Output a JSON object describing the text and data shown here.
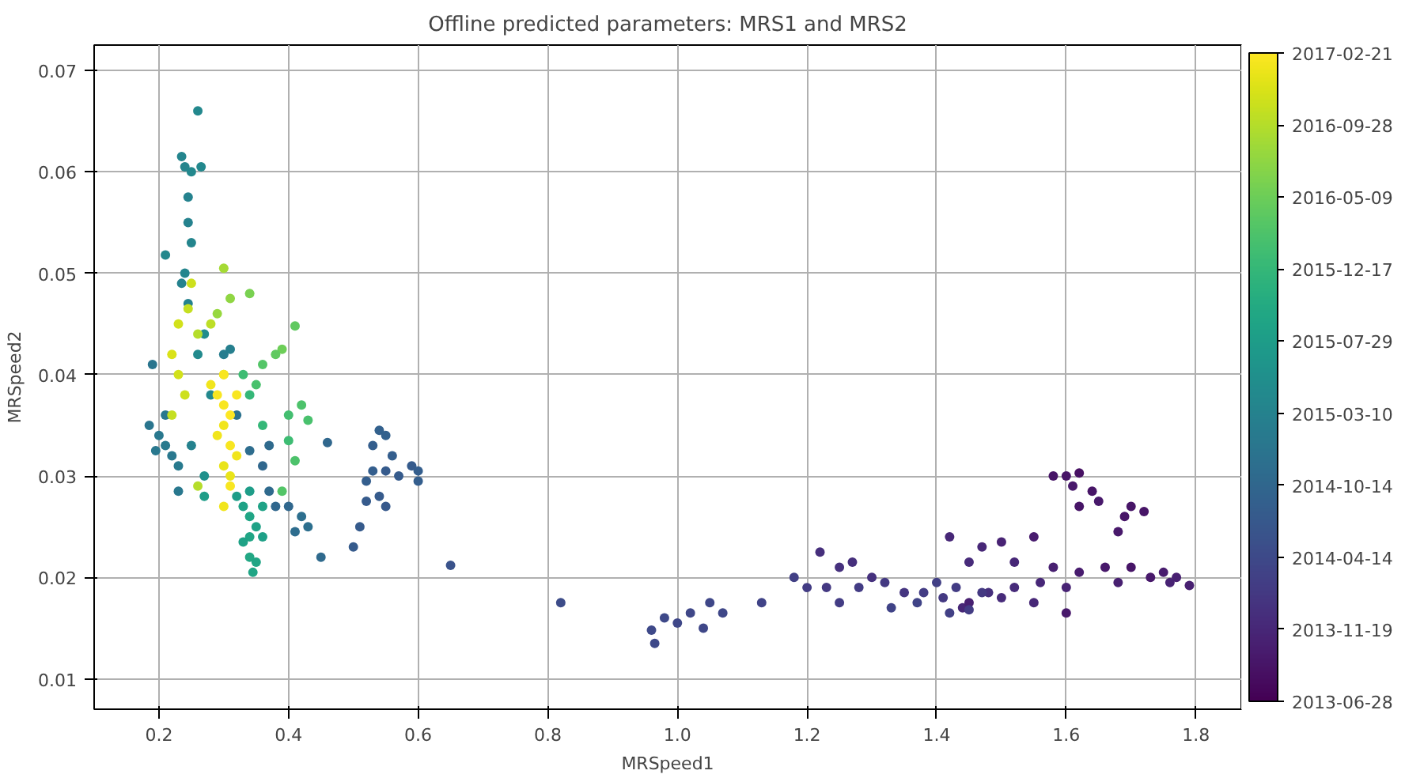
{
  "chart_data": {
    "type": "scatter",
    "title": "Offline predicted parameters: MRS1 and MRS2",
    "xlabel": "MRSpeed1",
    "ylabel": "MRSpeed2",
    "xlim": [
      0.1,
      1.87
    ],
    "ylim": [
      0.007,
      0.0725
    ],
    "xticks": [
      0.2,
      0.4,
      0.6,
      0.8,
      {
        "value": 1.0,
        "label": "1.0"
      },
      1.2,
      1.4,
      1.6,
      1.8
    ],
    "yticks": [
      0.01,
      0.02,
      0.03,
      0.04,
      0.05,
      0.06,
      0.07
    ],
    "grid": true,
    "marker": "circle",
    "clim": [
      0,
      9
    ],
    "cticks": [
      {
        "value": 0,
        "label": "2013-06-28"
      },
      {
        "value": 1,
        "label": "2013-11-19"
      },
      {
        "value": 2,
        "label": "2014-04-14"
      },
      {
        "value": 3,
        "label": "2014-10-14"
      },
      {
        "value": 4,
        "label": "2015-03-10"
      },
      {
        "value": 5,
        "label": "2015-07-29"
      },
      {
        "value": 6,
        "label": "2015-12-17"
      },
      {
        "value": 7,
        "label": "2016-05-09"
      },
      {
        "value": 8,
        "label": "2016-09-28"
      },
      {
        "value": 9,
        "label": "2017-02-21"
      }
    ],
    "x": [
      1.58,
      1.6,
      1.62,
      1.61,
      1.64,
      1.65,
      1.7,
      1.72,
      1.68,
      1.69,
      1.62,
      1.55,
      1.5,
      1.47,
      1.42,
      1.45,
      1.52,
      1.58,
      1.62,
      1.66,
      1.7,
      1.73,
      1.75,
      1.77,
      1.79,
      1.76,
      1.68,
      1.6,
      1.56,
      1.52,
      1.48,
      1.44,
      1.45,
      1.55,
      1.6,
      1.5,
      1.35,
      1.22,
      1.25,
      1.27,
      1.3,
      1.18,
      1.2,
      1.23,
      1.25,
      1.28,
      1.32,
      1.38,
      1.4,
      1.41,
      1.43,
      1.42,
      1.45,
      1.47,
      1.37,
      1.33,
      1.13,
      1.05,
      1.02,
      1.0,
      0.98,
      0.96,
      0.965,
      1.04,
      1.07,
      0.82,
      0.65,
      0.5,
      0.51,
      0.52,
      0.53,
      0.53,
      0.54,
      0.55,
      0.56,
      0.55,
      0.54,
      0.55,
      0.57,
      0.59,
      0.6,
      0.6,
      0.52,
      0.46,
      0.45,
      0.42,
      0.43,
      0.41,
      0.4,
      0.38,
      0.37,
      0.36,
      0.37,
      0.34,
      0.26,
      0.235,
      0.24,
      0.25,
      0.265,
      0.245,
      0.245,
      0.25,
      0.24,
      0.21,
      0.235,
      0.245,
      0.19,
      0.21,
      0.2,
      0.21,
      0.22,
      0.185,
      0.195,
      0.23,
      0.23,
      0.26,
      0.27,
      0.28,
      0.3,
      0.31,
      0.32,
      0.25,
      0.27,
      0.33,
      0.34,
      0.35,
      0.34,
      0.33,
      0.34,
      0.345,
      0.35,
      0.36,
      0.32,
      0.27,
      0.36,
      0.34,
      0.41,
      0.39,
      0.38,
      0.36,
      0.35,
      0.33,
      0.34,
      0.4,
      0.42,
      0.43,
      0.4,
      0.41,
      0.39,
      0.31,
      0.3,
      0.29,
      0.34,
      0.36,
      0.25,
      0.245,
      0.23,
      0.22,
      0.23,
      0.24,
      0.22,
      0.26,
      0.28,
      0.3,
      0.26,
      0.29,
      0.3,
      0.31,
      0.3,
      0.29,
      0.31,
      0.32,
      0.3,
      0.31,
      0.3,
      0.31,
      0.28,
      0.32,
      0.3
    ],
    "values": [
      0.03,
      0.03,
      0.0303,
      0.029,
      0.0285,
      0.0275,
      0.027,
      0.0265,
      0.0245,
      0.026,
      0.027,
      0.024,
      0.0235,
      0.023,
      0.024,
      0.0215,
      0.0215,
      0.021,
      0.0205,
      0.021,
      0.021,
      0.02,
      0.0205,
      0.02,
      0.0192,
      0.0195,
      0.0195,
      0.019,
      0.0195,
      0.019,
      0.0185,
      0.017,
      0.0175,
      0.0175,
      0.0165,
      0.018,
      0.0185,
      0.0225,
      0.021,
      0.0215,
      0.02,
      0.02,
      0.019,
      0.019,
      0.0175,
      0.019,
      0.0195,
      0.0185,
      0.0195,
      0.018,
      0.019,
      0.0165,
      0.0168,
      0.0185,
      0.0175,
      0.017,
      0.0175,
      0.0175,
      0.0165,
      0.0155,
      0.016,
      0.0148,
      0.0135,
      0.015,
      0.0165,
      0.0175,
      0.0212,
      0.023,
      0.025,
      0.0295,
      0.0305,
      0.033,
      0.0345,
      0.034,
      0.032,
      0.0305,
      0.028,
      0.027,
      0.03,
      0.031,
      0.0305,
      0.0295,
      0.0275,
      0.0333,
      0.022,
      0.026,
      0.025,
      0.0245,
      0.027,
      0.027,
      0.0285,
      0.031,
      0.033,
      0.0325,
      0.066,
      0.0615,
      0.0605,
      0.06,
      0.0605,
      0.0575,
      0.055,
      0.053,
      0.05,
      0.0518,
      0.049,
      0.047,
      0.041,
      0.036,
      0.034,
      0.033,
      0.032,
      0.035,
      0.0325,
      0.0285,
      0.031,
      0.042,
      0.044,
      0.038,
      0.042,
      0.0425,
      0.036,
      0.033,
      0.03,
      0.027,
      0.026,
      0.025,
      0.024,
      0.0235,
      0.022,
      0.0205,
      0.0215,
      0.024,
      0.028,
      0.028,
      0.027,
      0.0285,
      0.0448,
      0.0425,
      0.042,
      0.041,
      0.039,
      0.04,
      0.038,
      0.036,
      0.037,
      0.0355,
      0.0335,
      0.0315,
      0.0285,
      0.0475,
      0.0505,
      0.046,
      0.048,
      0.035,
      0.049,
      0.0465,
      0.045,
      0.042,
      0.04,
      0.038,
      0.036,
      0.044,
      0.045,
      0.04,
      0.029,
      0.038,
      0.037,
      0.036,
      0.035,
      0.034,
      0.033,
      0.032,
      0.031,
      0.03,
      0.027,
      0.029,
      0.039,
      0.038,
      0.04
    ],
    "cvalues": [
      0.5,
      0.5,
      0.4,
      0.6,
      0.5,
      0.6,
      0.5,
      0.5,
      0.6,
      0.5,
      0.5,
      0.7,
      0.9,
      1.0,
      1.0,
      1.1,
      1.0,
      0.8,
      0.7,
      0.6,
      0.5,
      0.6,
      0.7,
      0.8,
      0.8,
      0.9,
      0.8,
      0.9,
      1.0,
      1.1,
      1.2,
      1.0,
      0.8,
      1.0,
      0.6,
      1.1,
      1.4,
      1.2,
      1.3,
      1.2,
      1.3,
      1.7,
      1.6,
      1.5,
      1.6,
      1.6,
      1.5,
      1.6,
      1.7,
      1.5,
      1.6,
      1.7,
      1.6,
      1.5,
      1.8,
      1.8,
      1.8,
      1.9,
      1.9,
      1.9,
      2.0,
      2.0,
      2.0,
      1.9,
      1.9,
      2.1,
      2.3,
      2.6,
      2.6,
      2.7,
      2.7,
      2.7,
      2.8,
      2.8,
      2.7,
      2.6,
      2.6,
      2.5,
      2.6,
      2.6,
      2.7,
      2.7,
      2.6,
      3.0,
      3.1,
      3.3,
      3.3,
      3.2,
      3.0,
      3.0,
      3.1,
      3.0,
      3.1,
      3.2,
      4.2,
      4.1,
      4.1,
      4.2,
      4.2,
      4.0,
      4.0,
      4.1,
      4.1,
      4.2,
      4.0,
      4.0,
      3.5,
      3.6,
      3.6,
      3.7,
      3.6,
      3.5,
      3.6,
      3.6,
      3.7,
      4.3,
      4.4,
      4.2,
      3.8,
      3.9,
      3.4,
      4.0,
      4.5,
      5.2,
      5.3,
      5.2,
      5.3,
      5.2,
      5.4,
      5.3,
      5.3,
      5.1,
      5.0,
      5.0,
      5.2,
      5.0,
      6.8,
      7.0,
      6.8,
      6.6,
      6.4,
      6.2,
      6.0,
      6.3,
      6.5,
      6.4,
      6.2,
      6.5,
      6.6,
      7.5,
      7.8,
      7.6,
      7.2,
      6.0,
      8.3,
      8.2,
      8.4,
      8.5,
      8.4,
      8.3,
      8.2,
      8.0,
      8.1,
      8.2,
      8.0,
      8.9,
      8.9,
      9.0,
      8.8,
      8.8,
      8.9,
      8.8,
      8.7,
      8.7,
      8.8,
      8.9,
      8.8,
      8.9,
      8.9
    ]
  }
}
